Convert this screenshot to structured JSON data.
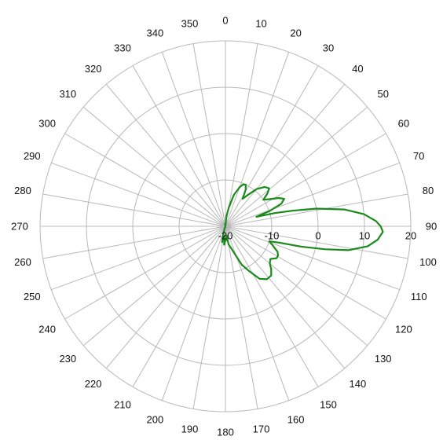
{
  "chart_data": {
    "type": "line",
    "subtype": "polar",
    "title": "",
    "angular_axis": {
      "unit": "degrees",
      "direction": "clockwise",
      "zero_at": "top",
      "step": 10,
      "tick_labels": [
        "0",
        "10",
        "20",
        "30",
        "40",
        "50",
        "60",
        "70",
        "80",
        "90",
        "100",
        "110",
        "120",
        "130",
        "140",
        "150",
        "160",
        "170",
        "180",
        "190",
        "200",
        "210",
        "220",
        "230",
        "240",
        "250",
        "260",
        "270",
        "280",
        "290",
        "300",
        "310",
        "320",
        "330",
        "340",
        "350"
      ]
    },
    "radial_axis": {
      "range": [
        -20,
        20
      ],
      "tick_values": [
        -20,
        -10,
        0,
        10,
        20
      ],
      "tick_labels": [
        "-20",
        "-10",
        "0",
        "10",
        "20"
      ],
      "label_angle_deg": 90
    },
    "grid": true,
    "legend": "none",
    "series": [
      {
        "color": "#1a8a1a",
        "points": [
          {
            "theta": 0,
            "r": -20
          },
          {
            "theta": 5,
            "r": -18
          },
          {
            "theta": 10,
            "r": -16
          },
          {
            "theta": 15,
            "r": -13
          },
          {
            "theta": 20,
            "r": -11
          },
          {
            "theta": 23,
            "r": -10.2
          },
          {
            "theta": 26,
            "r": -10
          },
          {
            "theta": 29,
            "r": -11
          },
          {
            "theta": 32,
            "r": -13
          },
          {
            "theta": 36,
            "r": -11.5
          },
          {
            "theta": 40,
            "r": -9.5
          },
          {
            "theta": 45,
            "r": -8
          },
          {
            "theta": 49,
            "r": -7.5
          },
          {
            "theta": 52,
            "r": -8.5
          },
          {
            "theta": 55,
            "r": -10
          },
          {
            "theta": 58,
            "r": -9
          },
          {
            "theta": 62,
            "r": -7
          },
          {
            "theta": 65,
            "r": -6
          },
          {
            "theta": 68,
            "r": -7
          },
          {
            "theta": 71,
            "r": -10
          },
          {
            "theta": 73,
            "r": -13
          },
          {
            "theta": 75,
            "r": -9
          },
          {
            "theta": 77,
            "r": -5
          },
          {
            "theta": 79,
            "r": 0
          },
          {
            "theta": 82,
            "r": 6
          },
          {
            "theta": 85,
            "r": 10
          },
          {
            "theta": 88,
            "r": 12.5
          },
          {
            "theta": 90,
            "r": 13.5
          },
          {
            "theta": 92,
            "r": 14
          },
          {
            "theta": 95,
            "r": 13
          },
          {
            "theta": 98,
            "r": 11
          },
          {
            "theta": 101,
            "r": 7
          },
          {
            "theta": 103,
            "r": 2
          },
          {
            "theta": 105,
            "r": -3
          },
          {
            "theta": 107,
            "r": -8
          },
          {
            "theta": 109,
            "r": -10
          },
          {
            "theta": 112,
            "r": -9
          },
          {
            "theta": 116,
            "r": -7.5
          },
          {
            "theta": 119,
            "r": -7
          },
          {
            "theta": 122,
            "r": -7
          },
          {
            "theta": 126,
            "r": -8
          },
          {
            "theta": 130,
            "r": -7.5
          },
          {
            "theta": 133,
            "r": -6.5
          },
          {
            "theta": 137,
            "r": -5.5
          },
          {
            "theta": 142,
            "r": -5.5
          },
          {
            "theta": 147,
            "r": -6.5
          },
          {
            "theta": 152,
            "r": -9
          },
          {
            "theta": 157,
            "r": -11
          },
          {
            "theta": 162,
            "r": -14
          },
          {
            "theta": 167,
            "r": -15.5
          },
          {
            "theta": 170,
            "r": -16
          },
          {
            "theta": 173,
            "r": -18
          },
          {
            "theta": 176,
            "r": -17
          },
          {
            "theta": 180,
            "r": -17
          },
          {
            "theta": 184,
            "r": -16
          },
          {
            "theta": 188,
            "r": -18
          },
          {
            "theta": 192,
            "r": -16.5
          },
          {
            "theta": 196,
            "r": -18.5
          },
          {
            "theta": 200,
            "r": -19.5
          },
          {
            "theta": 210,
            "r": -20
          },
          {
            "theta": 340,
            "r": -20
          },
          {
            "theta": 350,
            "r": -19.5
          },
          {
            "theta": 360,
            "r": -20
          }
        ]
      }
    ]
  }
}
